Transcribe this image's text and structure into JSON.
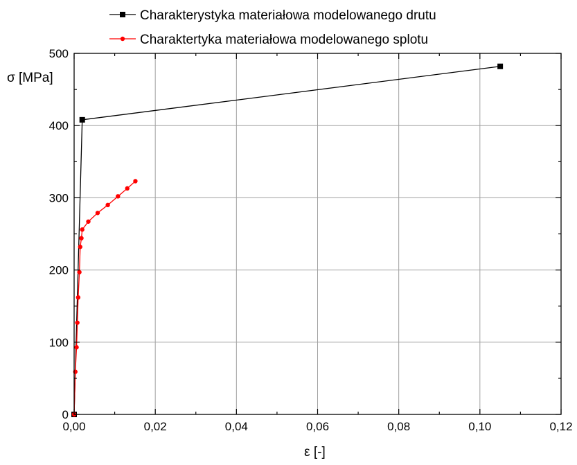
{
  "chart_data": {
    "type": "line",
    "title": "",
    "xlabel": "ε [-]",
    "ylabel": "σ [MPa]",
    "xlim": [
      0,
      0.12
    ],
    "ylim": [
      0,
      500
    ],
    "x_ticks": [
      "0,00",
      "0,02",
      "0,04",
      "0,06",
      "0,08",
      "0,10",
      "0,12"
    ],
    "y_ticks": [
      "0",
      "100",
      "200",
      "300",
      "400",
      "500"
    ],
    "x_tick_values": [
      0,
      0.02,
      0.04,
      0.06,
      0.08,
      0.1,
      0.12
    ],
    "y_tick_values": [
      0,
      100,
      200,
      300,
      400,
      500
    ],
    "grid": true,
    "legend_position": "top",
    "series": [
      {
        "name": "Charakterystyka materiałowa modelowanego drutu",
        "color": "#000000",
        "marker": "square",
        "x": [
          0,
          0.002,
          0.105
        ],
        "y": [
          0,
          408,
          482
        ]
      },
      {
        "name": "Charaktertyka materiałowa modelowanego splotu",
        "color": "#ff0000",
        "marker": "circle",
        "x": [
          0,
          0.0003,
          0.0006,
          0.0008,
          0.001,
          0.0013,
          0.0015,
          0.0018,
          0.002,
          0.0035,
          0.0058,
          0.0083,
          0.0108,
          0.0131,
          0.0151
        ],
        "y": [
          0,
          59,
          93,
          127,
          162,
          197,
          232,
          244,
          256,
          267,
          279,
          290,
          302,
          313,
          323
        ]
      }
    ]
  }
}
